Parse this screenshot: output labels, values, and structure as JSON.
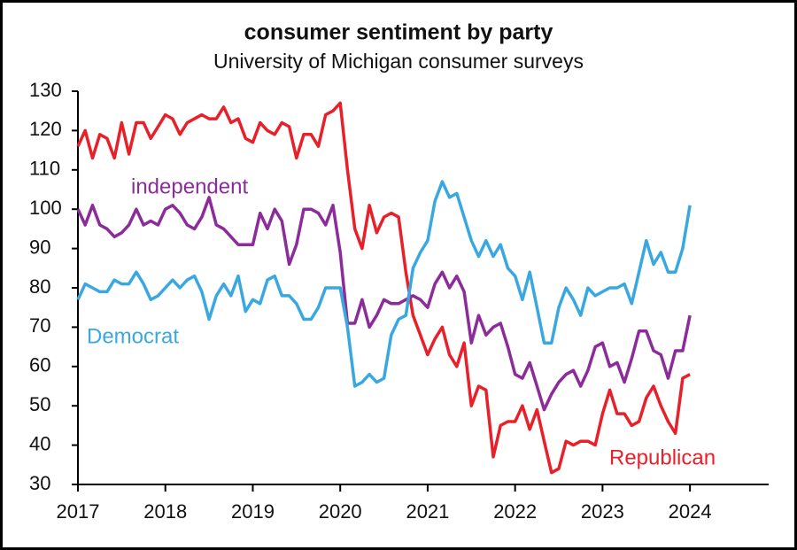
{
  "chart_data": {
    "type": "line",
    "title": "consumer sentiment by party",
    "subtitle": "University of Michigan consumer surveys",
    "x": [
      2017,
      2017.083,
      2017.167,
      2017.25,
      2017.333,
      2017.417,
      2017.5,
      2017.583,
      2017.667,
      2017.75,
      2017.833,
      2017.917,
      2018,
      2018.083,
      2018.167,
      2018.25,
      2018.333,
      2018.417,
      2018.5,
      2018.583,
      2018.667,
      2018.75,
      2018.833,
      2018.917,
      2019,
      2019.083,
      2019.167,
      2019.25,
      2019.333,
      2019.417,
      2019.5,
      2019.583,
      2019.667,
      2019.75,
      2019.833,
      2019.917,
      2020,
      2020.083,
      2020.167,
      2020.25,
      2020.333,
      2020.417,
      2020.5,
      2020.583,
      2020.667,
      2020.75,
      2020.833,
      2020.917,
      2021,
      2021.083,
      2021.167,
      2021.25,
      2021.333,
      2021.417,
      2021.5,
      2021.583,
      2021.667,
      2021.75,
      2021.833,
      2021.917,
      2022,
      2022.083,
      2022.167,
      2022.25,
      2022.333,
      2022.417,
      2022.5,
      2022.583,
      2022.667,
      2022.75,
      2022.833,
      2022.917,
      2023,
      2023.083,
      2023.167,
      2023.25,
      2023.333,
      2023.417,
      2023.5,
      2023.583,
      2023.667,
      2023.75,
      2023.833,
      2023.917,
      2024
    ],
    "series": [
      {
        "name": "Republican",
        "color": "#e8202a",
        "values": [
          116,
          120,
          113,
          119,
          118,
          113,
          122,
          114,
          122,
          122,
          118,
          121,
          124,
          123,
          119,
          122,
          123,
          124,
          123,
          123,
          126,
          122,
          123,
          118,
          117,
          122,
          120,
          119,
          122,
          121,
          113,
          119,
          119,
          116,
          124,
          125,
          127,
          110,
          95,
          90,
          101,
          94,
          98,
          99,
          98,
          84,
          73,
          68,
          63,
          67,
          70,
          63,
          60,
          66,
          50,
          55,
          54,
          37,
          45,
          46,
          46,
          50,
          44,
          49,
          41,
          33,
          34,
          41,
          40,
          41,
          41,
          40,
          48,
          54,
          48,
          48,
          45,
          46,
          52,
          55,
          50,
          46,
          43,
          57,
          58
        ]
      },
      {
        "name": "independent",
        "color": "#8b2c9a",
        "values": [
          100,
          96,
          101,
          96,
          95,
          93,
          94,
          96,
          100,
          96,
          97,
          96,
          100,
          101,
          99,
          96,
          95,
          98,
          103,
          96,
          95,
          93,
          91,
          91,
          91,
          99,
          95,
          100,
          97,
          86,
          91,
          100,
          100,
          99,
          96,
          101,
          89,
          71,
          71,
          77,
          70,
          73,
          77,
          76,
          76,
          77,
          78,
          77,
          75,
          81,
          84,
          80,
          83,
          79,
          66,
          73,
          68,
          70,
          71,
          65,
          58,
          57,
          61,
          55,
          49,
          53,
          56,
          58,
          59,
          55,
          59,
          65,
          66,
          60,
          61,
          56,
          62,
          69,
          69,
          64,
          63,
          57,
          64,
          64,
          73
        ]
      },
      {
        "name": "Democrat",
        "color": "#3aa8e0",
        "values": [
          77,
          81,
          80,
          79,
          79,
          82,
          81,
          81,
          84,
          81,
          77,
          78,
          80,
          82,
          80,
          82,
          83,
          79,
          72,
          78,
          81,
          78,
          83,
          74,
          77,
          76,
          82,
          83,
          78,
          78,
          76,
          72,
          72,
          75,
          80,
          80,
          80,
          70,
          55,
          56,
          58,
          56,
          57,
          68,
          72,
          73,
          85,
          89,
          92,
          102,
          107,
          103,
          104,
          98,
          92,
          88,
          92,
          88,
          91,
          85,
          83,
          77,
          84,
          75,
          66,
          66,
          75,
          80,
          77,
          73,
          80,
          78,
          79,
          80,
          80,
          81,
          76,
          84,
          92,
          86,
          89,
          84,
          84,
          90,
          101
        ]
      }
    ],
    "xlim": [
      2017,
      2024.9
    ],
    "xticks": [
      2017,
      2018,
      2019,
      2020,
      2021,
      2022,
      2023,
      2024
    ],
    "ylim": [
      30,
      130
    ],
    "yticks": [
      30,
      40,
      50,
      60,
      70,
      80,
      90,
      100,
      110,
      120,
      130
    ]
  }
}
